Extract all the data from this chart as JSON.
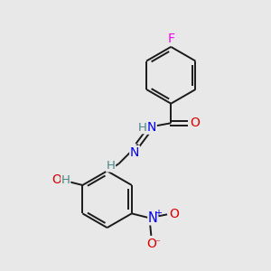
{
  "bg_color": "#e8e8e8",
  "bond_color": "#1a1a1a",
  "atom_colors": {
    "F": "#ee00ee",
    "O": "#dd0000",
    "N": "#0000ee",
    "H": "#448888",
    "C": "#1a1a1a"
  },
  "lw": 1.4,
  "fontsize": 9.5,
  "figsize": [
    3.0,
    3.0
  ],
  "dpi": 100
}
